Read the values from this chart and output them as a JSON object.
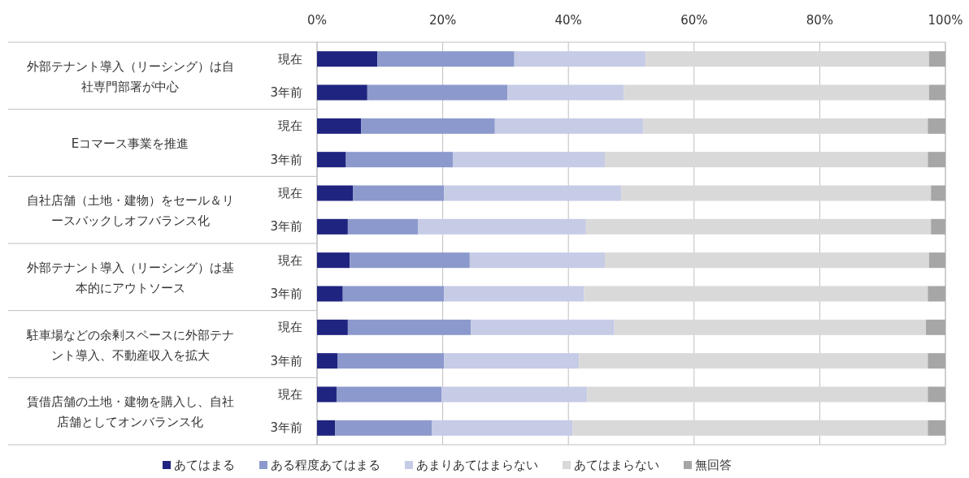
{
  "chart_data": {
    "type": "bar",
    "orientation": "horizontal",
    "stacked": true,
    "categories": [
      "現在",
      "3年前",
      "現在",
      "3年前",
      "現在",
      "3年前",
      "現在",
      "3年前",
      "現在",
      "3年前",
      "現在",
      "3年前"
    ],
    "annotations": [
      "外部テナント導入（リーシング）は自社専門部署が中心",
      "Eコマース事業を推進",
      "自社店舗（土地・建物）をセール＆リースバックしオフバランス化",
      "外部テナント導入（リーシング）は基本的にアウトソース",
      "駐車場などの余剰スペースに外部テナント導入、不動産収入を拡大",
      "賃借店舗の土地・建物を購入し、自社店舗としてオンバランス化"
    ],
    "series": [
      {
        "name": "あてはまる",
        "color": "#1f2480",
        "values": [
          9.6,
          8.0,
          7.0,
          4.6,
          5.7,
          4.9,
          5.2,
          4.1,
          4.9,
          3.3,
          3.1,
          2.9
        ]
      },
      {
        "name": "ある程度あてはまる",
        "color": "#8c99cc",
        "values": [
          21.8,
          22.3,
          21.3,
          17.0,
          14.5,
          11.2,
          19.1,
          16.1,
          19.6,
          16.9,
          16.7,
          15.4
        ]
      },
      {
        "name": "あまりあてはまらない",
        "color": "#c6cbe6",
        "values": [
          20.9,
          18.5,
          23.6,
          24.2,
          28.2,
          26.7,
          21.5,
          22.3,
          22.8,
          21.5,
          23.2,
          22.4
        ]
      },
      {
        "name": "あてはまらない",
        "color": "#d9d9d9",
        "values": [
          45.1,
          48.6,
          45.3,
          51.4,
          49.3,
          54.9,
          51.6,
          54.7,
          49.6,
          55.5,
          54.2,
          56.5
        ]
      },
      {
        "name": "無回答",
        "color": "#a6a6a6",
        "values": [
          2.6,
          2.6,
          2.8,
          2.8,
          2.3,
          2.3,
          2.6,
          2.8,
          3.1,
          2.8,
          2.8,
          2.8
        ]
      }
    ],
    "xlim": [
      0,
      100
    ],
    "xticks": [
      {
        "value": 0,
        "label": "0%"
      },
      {
        "value": 20,
        "label": "20%"
      },
      {
        "value": 40,
        "label": "40%"
      },
      {
        "value": 60,
        "label": "60%"
      },
      {
        "value": 80,
        "label": "80%"
      },
      {
        "value": 100,
        "label": "100%"
      }
    ],
    "grid": "x",
    "legend": "bottom"
  }
}
